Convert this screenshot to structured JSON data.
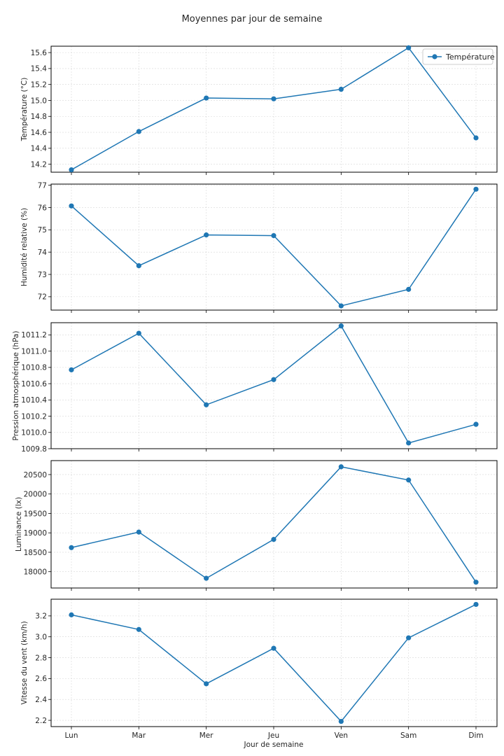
{
  "chart_data": {
    "type": "line",
    "title": "Moyennes par jour de semaine",
    "xlabel": "Jour de semaine",
    "categories": [
      "Lun",
      "Mar",
      "Mer",
      "Jeu",
      "Ven",
      "Sam",
      "Dim"
    ],
    "grid": true,
    "line_color": "#1f77b4",
    "panels": [
      {
        "id": "temperature",
        "ylabel": "Température (°C)",
        "ylim": [
          14.1,
          15.68
        ],
        "yticks": [
          14.2,
          14.4,
          14.6,
          14.8,
          15.0,
          15.2,
          15.4,
          15.6
        ],
        "tick_decimals": 1,
        "legend": "Température",
        "legend_position": "top-right",
        "values": [
          14.13,
          14.61,
          15.03,
          15.02,
          15.14,
          15.66,
          14.53
        ]
      },
      {
        "id": "humidite",
        "ylabel": "Humidité relative (%)",
        "ylim": [
          71.4,
          77.05
        ],
        "yticks": [
          72,
          73,
          74,
          75,
          76,
          77
        ],
        "tick_decimals": 0,
        "values": [
          76.07,
          73.39,
          74.77,
          74.74,
          71.59,
          72.33,
          76.82
        ]
      },
      {
        "id": "pression",
        "ylabel": "Pression atmosphérique (hPa)",
        "ylim": [
          1009.8,
          1011.35
        ],
        "yticks": [
          1009.8,
          1010.0,
          1010.2,
          1010.4,
          1010.6,
          1010.8,
          1011.0,
          1011.2
        ],
        "tick_decimals": 1,
        "values": [
          1010.77,
          1011.22,
          1010.34,
          1010.65,
          1011.31,
          1009.87,
          1010.1
        ]
      },
      {
        "id": "luminance",
        "ylabel": "Luminance (lx)",
        "ylim": [
          17580,
          20860
        ],
        "yticks": [
          18000,
          18500,
          19000,
          19500,
          20000,
          20500
        ],
        "tick_decimals": 0,
        "values": [
          18620,
          19020,
          17830,
          18830,
          20700,
          20360,
          17730
        ]
      },
      {
        "id": "vent",
        "ylabel": "Vitesse du vent (km/h)",
        "ylim": [
          2.14,
          3.36
        ],
        "yticks": [
          2.2,
          2.4,
          2.6,
          2.8,
          3.0,
          3.2
        ],
        "tick_decimals": 1,
        "values": [
          3.21,
          3.07,
          2.55,
          2.89,
          2.19,
          2.99,
          3.31
        ]
      }
    ]
  }
}
